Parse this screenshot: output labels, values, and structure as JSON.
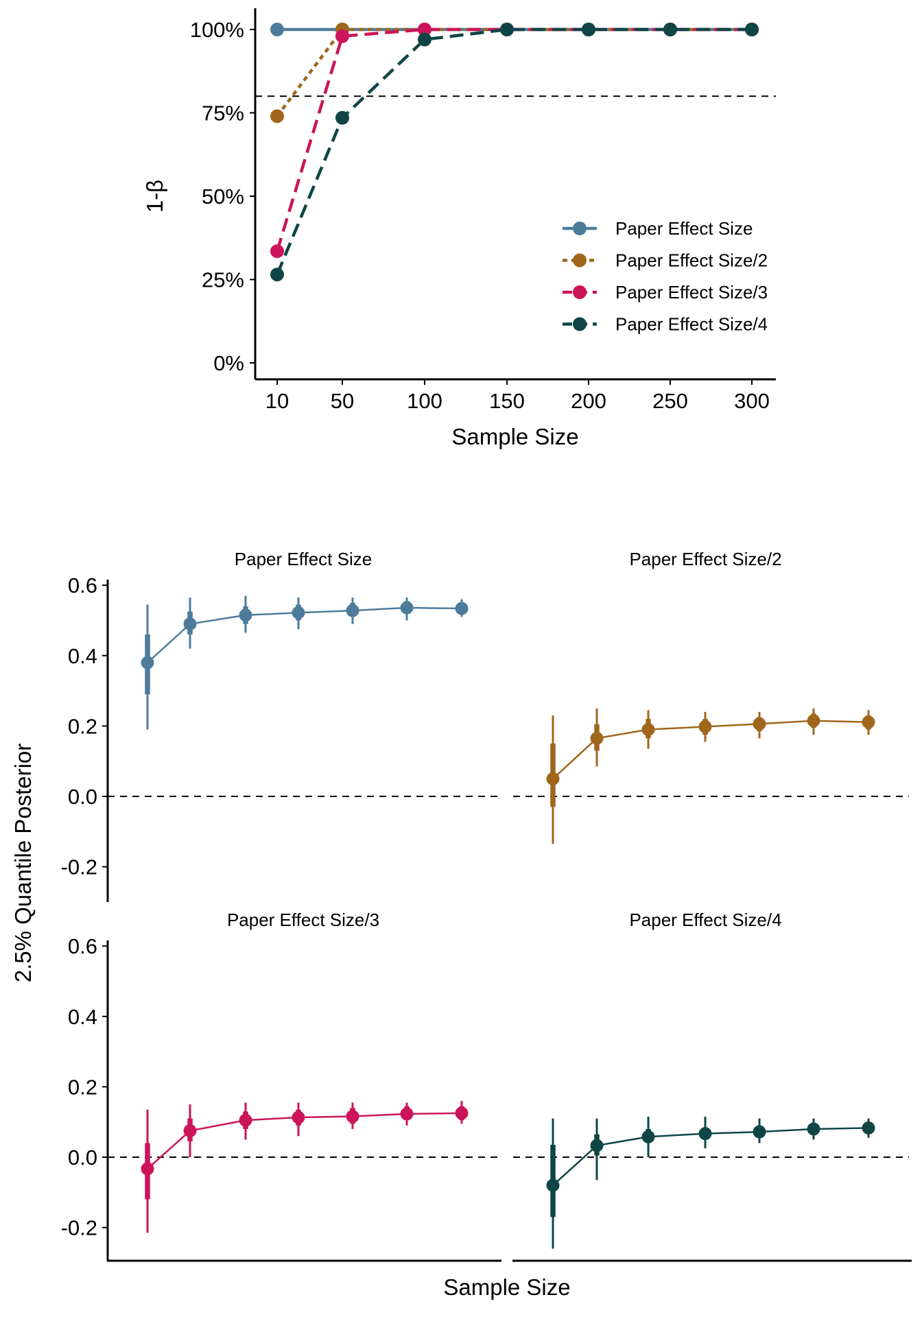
{
  "chart_data": [
    {
      "type": "line",
      "xlabel": "Sample Size",
      "ylabel": "1-β",
      "x": [
        10,
        50,
        100,
        150,
        200,
        250,
        300
      ],
      "x_tick_labels": [
        "10",
        "50",
        "100",
        "150",
        "200",
        "250",
        "300"
      ],
      "ylim": [
        0,
        1
      ],
      "y_ticks": [
        0,
        0.25,
        0.5,
        0.75,
        1
      ],
      "y_tick_labels": [
        "0%",
        "25%",
        "50%",
        "75%",
        "100%"
      ],
      "reference_line": 0.8,
      "grid": false,
      "legend_position": "right",
      "series": [
        {
          "name": "Paper Effect Size",
          "color": "#4d7c9b",
          "linestyle": "solid",
          "values": [
            1.0,
            1.0,
            1.0,
            1.0,
            1.0,
            1.0,
            1.0
          ]
        },
        {
          "name": "Paper Effect Size/2",
          "color": "#a0661c",
          "linestyle": "dotted",
          "values": [
            0.74,
            1.0,
            1.0,
            1.0,
            1.0,
            1.0,
            1.0
          ]
        },
        {
          "name": "Paper Effect Size/3",
          "color": "#cc145a",
          "linestyle": "dashed",
          "values": [
            0.335,
            0.98,
            1.0,
            1.0,
            1.0,
            1.0,
            1.0
          ]
        },
        {
          "name": "Paper Effect Size/4",
          "color": "#0f4545",
          "linestyle": "dashed",
          "values": [
            0.265,
            0.735,
            0.97,
            1.0,
            1.0,
            1.0,
            1.0
          ]
        }
      ]
    },
    {
      "type": "line",
      "subtype": "pointrange-facets",
      "xlabel": "Sample Size",
      "ylabel": "2.5% Quantile Posterior",
      "ylim": [
        -0.3,
        0.62
      ],
      "y_ticks": [
        -0.2,
        0.0,
        0.2,
        0.4,
        0.6
      ],
      "y_tick_labels": [
        "-0.2",
        "0.0",
        "0.2",
        "0.4",
        "0.6"
      ],
      "reference_line": 0.0,
      "grid": false,
      "panels": [
        {
          "title": "Paper Effect Size",
          "color": "#4d7c9b",
          "median": [
            0.38,
            0.49,
            0.515,
            0.522,
            0.528,
            0.536,
            0.534
          ],
          "inner": [
            [
              0.29,
              0.46
            ],
            [
              0.46,
              0.525
            ],
            [
              0.49,
              0.54
            ],
            [
              0.5,
              0.545
            ],
            [
              0.51,
              0.55
            ],
            [
              0.52,
              0.555
            ],
            [
              0.52,
              0.55
            ]
          ],
          "outer": [
            [
              0.19,
              0.545
            ],
            [
              0.42,
              0.565
            ],
            [
              0.465,
              0.57
            ],
            [
              0.475,
              0.565
            ],
            [
              0.49,
              0.565
            ],
            [
              0.5,
              0.565
            ],
            [
              0.51,
              0.56
            ]
          ]
        },
        {
          "title": "Paper Effect Size/2",
          "color": "#a0661c",
          "median": [
            0.05,
            0.165,
            0.19,
            0.198,
            0.206,
            0.215,
            0.211
          ],
          "inner": [
            [
              -0.03,
              0.15
            ],
            [
              0.13,
              0.205
            ],
            [
              0.165,
              0.22
            ],
            [
              0.175,
              0.22
            ],
            [
              0.185,
              0.225
            ],
            [
              0.195,
              0.235
            ],
            [
              0.19,
              0.23
            ]
          ],
          "outer": [
            [
              -0.135,
              0.23
            ],
            [
              0.085,
              0.25
            ],
            [
              0.135,
              0.245
            ],
            [
              0.155,
              0.24
            ],
            [
              0.165,
              0.24
            ],
            [
              0.175,
              0.25
            ],
            [
              0.175,
              0.245
            ]
          ]
        },
        {
          "title": "Paper Effect Size/3",
          "color": "#cc145a",
          "median": [
            -0.033,
            0.075,
            0.105,
            0.113,
            0.116,
            0.123,
            0.125
          ],
          "inner": [
            [
              -0.12,
              0.04
            ],
            [
              0.045,
              0.11
            ],
            [
              0.08,
              0.13
            ],
            [
              0.09,
              0.135
            ],
            [
              0.095,
              0.14
            ],
            [
              0.105,
              0.145
            ],
            [
              0.105,
              0.145
            ]
          ],
          "outer": [
            [
              -0.215,
              0.135
            ],
            [
              0.0,
              0.15
            ],
            [
              0.05,
              0.155
            ],
            [
              0.06,
              0.155
            ],
            [
              0.08,
              0.155
            ],
            [
              0.09,
              0.155
            ],
            [
              0.095,
              0.16
            ]
          ]
        },
        {
          "title": "Paper Effect Size/4",
          "color": "#0f4545",
          "median": [
            -0.08,
            0.033,
            0.058,
            0.067,
            0.072,
            0.08,
            0.083
          ],
          "inner": [
            [
              -0.17,
              0.035
            ],
            [
              0.005,
              0.065
            ],
            [
              0.04,
              0.08
            ],
            [
              0.05,
              0.085
            ],
            [
              0.055,
              0.09
            ],
            [
              0.065,
              0.095
            ],
            [
              0.07,
              0.098
            ]
          ],
          "outer": [
            [
              -0.26,
              0.11
            ],
            [
              -0.065,
              0.11
            ],
            [
              0.0,
              0.115
            ],
            [
              0.025,
              0.115
            ],
            [
              0.04,
              0.11
            ],
            [
              0.05,
              0.11
            ],
            [
              0.055,
              0.11
            ]
          ]
        }
      ]
    }
  ]
}
